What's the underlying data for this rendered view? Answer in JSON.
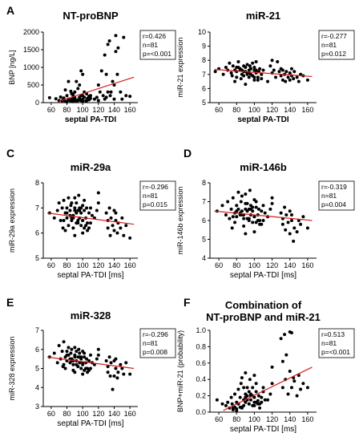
{
  "chart_data": [
    {
      "type": "scatter",
      "panel_letter": "A",
      "title_lines": [
        "NT-proBNP"
      ],
      "xlabel": "septal PA-TDI",
      "ylabel": "BNP [ng/L]",
      "xlim": [
        50,
        170
      ],
      "ylim": [
        0,
        2000
      ],
      "xticks": [
        60,
        80,
        100,
        120,
        140,
        160
      ],
      "yticks": [
        0,
        500,
        1000,
        1500,
        2000
      ],
      "grid": false,
      "stats": [
        "r=0.426",
        "n=81",
        "p=<0.001"
      ],
      "trendline": [
        [
          70,
          40
        ],
        [
          165,
          720
        ]
      ],
      "x": [
        58,
        66,
        70,
        72,
        74,
        75,
        76,
        78,
        78,
        80,
        80,
        82,
        82,
        84,
        85,
        86,
        86,
        88,
        88,
        88,
        90,
        90,
        90,
        92,
        92,
        94,
        94,
        95,
        96,
        96,
        98,
        98,
        100,
        100,
        100,
        102,
        102,
        104,
        105,
        106,
        108,
        108,
        110,
        115,
        118,
        120,
        120,
        122,
        124,
        126,
        128,
        128,
        130,
        130,
        132,
        132,
        134,
        135,
        136,
        138,
        140,
        140,
        142,
        142,
        144,
        145,
        148,
        150,
        152,
        155,
        160,
        98,
        105,
        88,
        80,
        92,
        110,
        86,
        94,
        100,
        96
      ],
      "y": [
        140,
        110,
        60,
        160,
        50,
        80,
        130,
        40,
        360,
        30,
        200,
        100,
        600,
        60,
        320,
        50,
        250,
        100,
        180,
        250,
        90,
        140,
        300,
        50,
        600,
        80,
        400,
        70,
        100,
        150,
        200,
        900,
        100,
        200,
        800,
        150,
        300,
        50,
        250,
        120,
        80,
        180,
        200,
        100,
        150,
        60,
        500,
        300,
        900,
        200,
        100,
        1350,
        150,
        800,
        300,
        1650,
        1750,
        200,
        300,
        600,
        100,
        500,
        1450,
        1900,
        800,
        1550,
        300,
        100,
        1850,
        200,
        180,
        60,
        50,
        30,
        20,
        40,
        120,
        90,
        60,
        30,
        500
      ]
    },
    {
      "type": "scatter",
      "panel_letter": "",
      "title_lines": [
        "miR-21"
      ],
      "xlabel": "septal PA-TDI",
      "ylabel": "miR-21 expression",
      "xlim": [
        50,
        170
      ],
      "ylim": [
        5,
        10
      ],
      "xticks": [
        60,
        80,
        100,
        120,
        140,
        160
      ],
      "yticks": [
        5,
        6,
        7,
        8,
        9,
        10
      ],
      "grid": false,
      "stats": [
        "r=-0.277",
        "n=81",
        "p=0.012"
      ],
      "trendline": [
        [
          55,
          7.35
        ],
        [
          165,
          6.85
        ]
      ],
      "x": [
        56,
        60,
        65,
        68,
        70,
        72,
        74,
        75,
        76,
        78,
        78,
        80,
        80,
        82,
        82,
        84,
        85,
        86,
        86,
        88,
        88,
        90,
        90,
        90,
        92,
        92,
        94,
        94,
        95,
        96,
        96,
        98,
        98,
        100,
        100,
        100,
        102,
        102,
        104,
        105,
        106,
        108,
        108,
        110,
        115,
        118,
        120,
        120,
        122,
        124,
        126,
        128,
        130,
        130,
        132,
        132,
        134,
        135,
        136,
        138,
        140,
        140,
        142,
        142,
        144,
        145,
        148,
        150,
        152,
        155,
        160,
        84,
        92,
        96,
        100,
        88,
        104,
        80,
        94,
        98,
        102
      ],
      "y": [
        7.2,
        7.4,
        7.0,
        7.5,
        7.3,
        7.8,
        7.1,
        6.9,
        7.6,
        7.3,
        6.5,
        7.2,
        6.8,
        7.5,
        7.9,
        7.4,
        6.7,
        7.3,
        7.0,
        7.6,
        6.9,
        7.2,
        7.5,
        6.3,
        7.1,
        7.7,
        6.8,
        7.3,
        7.6,
        7.0,
        7.4,
        6.9,
        7.8,
        7.3,
        6.6,
        7.5,
        7.1,
        7.9,
        6.8,
        7.2,
        7.4,
        7.0,
        6.7,
        7.3,
        6.5,
        7.6,
        7.1,
        8.0,
        7.3,
        6.8,
        7.9,
        7.2,
        6.9,
        7.4,
        6.6,
        7.3,
        7.0,
        6.5,
        7.2,
        6.8,
        7.1,
        6.6,
        7.4,
        6.9,
        6.7,
        7.2,
        6.8,
        6.5,
        7.0,
        6.9,
        6.6,
        7.3,
        7.0,
        7.4,
        6.8,
        7.2,
        6.6,
        7.5,
        7.1,
        6.9,
        7.3
      ]
    },
    {
      "type": "scatter",
      "panel_letter": "C",
      "title_lines": [
        "miR-29a"
      ],
      "xlabel": "septal PA-TDI [ms]",
      "ylabel": "miR-29a expression",
      "xlim": [
        50,
        170
      ],
      "ylim": [
        5,
        8
      ],
      "xticks": [
        60,
        80,
        100,
        120,
        140,
        160
      ],
      "yticks": [
        5,
        6,
        7,
        8
      ],
      "grid": false,
      "stats": [
        "r=-0.296",
        "n=81",
        "p=0.015"
      ],
      "trendline": [
        [
          55,
          6.8
        ],
        [
          165,
          6.35
        ]
      ],
      "x": [
        58,
        64,
        68,
        70,
        72,
        74,
        75,
        76,
        78,
        78,
        80,
        80,
        82,
        82,
        84,
        85,
        86,
        86,
        88,
        88,
        90,
        90,
        90,
        92,
        92,
        94,
        94,
        95,
        96,
        96,
        98,
        98,
        100,
        100,
        100,
        102,
        102,
        104,
        105,
        106,
        108,
        108,
        110,
        115,
        118,
        120,
        120,
        130,
        132,
        132,
        134,
        135,
        136,
        138,
        140,
        140,
        142,
        142,
        144,
        145,
        148,
        150,
        152,
        155,
        160,
        84,
        92,
        96,
        100,
        88,
        104,
        80,
        94,
        98,
        102,
        86,
        90,
        110,
        112,
        106,
        76
      ],
      "y": [
        6.8,
        6.6,
        6.9,
        7.2,
        6.5,
        7.0,
        6.2,
        7.3,
        6.8,
        6.1,
        7.0,
        6.6,
        7.4,
        6.3,
        6.9,
        7.1,
        6.5,
        7.2,
        6.7,
        6.2,
        7.0,
        7.4,
        5.9,
        6.8,
        7.2,
        6.4,
        6.9,
        7.5,
        6.6,
        7.0,
        6.3,
        6.8,
        7.1,
        6.5,
        6.0,
        6.9,
        7.3,
        6.6,
        7.0,
        6.4,
        6.8,
        6.2,
        7.0,
        6.6,
        6.9,
        7.6,
        7.2,
        6.8,
        6.2,
        6.5,
        7.0,
        5.9,
        6.6,
        6.3,
        6.9,
        6.1,
        6.5,
        6.8,
        6.0,
        6.4,
        6.2,
        6.6,
        5.9,
        6.3,
        5.8,
        6.7,
        6.4,
        6.9,
        6.5,
        6.6,
        6.3,
        6.8,
        6.5,
        7.0,
        6.2,
        6.6,
        6.9,
        6.4,
        6.7,
        6.1,
        6.5
      ]
    },
    {
      "type": "scatter",
      "panel_letter": "D",
      "title_lines": [
        "miR-146b"
      ],
      "xlabel": "septal PA-TDI [ms]",
      "ylabel": "miR-146b expression",
      "xlim": [
        50,
        170
      ],
      "ylim": [
        4,
        8
      ],
      "xticks": [
        60,
        80,
        100,
        120,
        140,
        160
      ],
      "yticks": [
        4,
        5,
        6,
        7,
        8
      ],
      "grid": false,
      "stats": [
        "r=-0.319",
        "n=81",
        "p=0.004"
      ],
      "trendline": [
        [
          55,
          6.5
        ],
        [
          165,
          6.0
        ]
      ],
      "x": [
        58,
        64,
        68,
        70,
        72,
        74,
        75,
        76,
        78,
        78,
        80,
        80,
        82,
        82,
        84,
        85,
        86,
        86,
        88,
        88,
        90,
        90,
        90,
        92,
        92,
        94,
        94,
        95,
        96,
        96,
        98,
        98,
        100,
        100,
        100,
        102,
        102,
        104,
        105,
        106,
        108,
        108,
        110,
        115,
        118,
        120,
        120,
        130,
        132,
        132,
        134,
        135,
        136,
        138,
        140,
        140,
        142,
        142,
        144,
        145,
        148,
        150,
        152,
        155,
        160,
        84,
        92,
        96,
        100,
        88,
        104,
        80,
        94,
        98,
        102,
        86,
        90,
        110,
        112,
        106,
        76
      ],
      "y": [
        6.5,
        6.8,
        6.3,
        7.0,
        6.1,
        6.6,
        5.6,
        7.2,
        6.4,
        5.9,
        6.8,
        6.2,
        7.5,
        6.6,
        6.3,
        7.0,
        6.5,
        7.3,
        6.1,
        5.7,
        6.9,
        7.4,
        5.3,
        6.5,
        6.9,
        6.0,
        6.6,
        7.6,
        6.3,
        6.8,
        5.9,
        6.5,
        7.1,
        6.2,
        5.4,
        6.7,
        7.0,
        6.3,
        6.6,
        6.0,
        6.5,
        5.8,
        6.8,
        6.2,
        6.6,
        7.2,
        6.9,
        6.4,
        5.8,
        6.1,
        6.7,
        5.5,
        6.3,
        5.9,
        6.5,
        5.3,
        6.0,
        6.3,
        4.9,
        5.6,
        5.4,
        6.0,
        5.8,
        6.2,
        5.6,
        6.4,
        6.1,
        6.6,
        6.2,
        6.3,
        6.0,
        6.5,
        6.1,
        6.7,
        5.9,
        6.3,
        6.6,
        6.0,
        6.4,
        5.8,
        6.2
      ]
    },
    {
      "type": "scatter",
      "panel_letter": "E",
      "title_lines": [
        "miR-328"
      ],
      "xlabel": "septal PA-TDI [ms]",
      "ylabel": "miR-328 expression",
      "xlim": [
        50,
        170
      ],
      "ylim": [
        3,
        7
      ],
      "xticks": [
        60,
        80,
        100,
        120,
        140,
        160
      ],
      "yticks": [
        3,
        4,
        5,
        6,
        7
      ],
      "grid": false,
      "stats": [
        "r=-0.296",
        "n=81",
        "p=0.008"
      ],
      "trendline": [
        [
          55,
          5.6
        ],
        [
          165,
          5.0
        ]
      ],
      "x": [
        58,
        64,
        68,
        70,
        72,
        74,
        75,
        76,
        78,
        78,
        80,
        80,
        82,
        82,
        84,
        85,
        86,
        86,
        88,
        88,
        90,
        90,
        90,
        92,
        92,
        94,
        94,
        95,
        96,
        96,
        98,
        98,
        100,
        100,
        100,
        102,
        102,
        104,
        105,
        106,
        108,
        108,
        110,
        115,
        118,
        120,
        120,
        130,
        132,
        132,
        134,
        135,
        136,
        138,
        140,
        140,
        142,
        142,
        144,
        145,
        148,
        150,
        152,
        155,
        160,
        84,
        92,
        96,
        100,
        88,
        104,
        80,
        94,
        98,
        102,
        86,
        90,
        110,
        112,
        106,
        76
      ],
      "y": [
        5.6,
        5.8,
        5.3,
        6.2,
        5.5,
        5.9,
        5.1,
        6.4,
        5.6,
        5.0,
        5.9,
        5.4,
        6.1,
        5.7,
        5.3,
        5.8,
        5.5,
        6.0,
        5.2,
        4.9,
        5.7,
        6.1,
        4.8,
        5.4,
        5.9,
        5.1,
        5.6,
        6.0,
        5.3,
        5.8,
        5.0,
        5.5,
        5.9,
        5.2,
        4.7,
        5.6,
        5.8,
        5.3,
        5.5,
        5.0,
        5.4,
        4.9,
        5.7,
        5.2,
        5.5,
        6.0,
        5.7,
        5.4,
        4.8,
        5.1,
        5.6,
        4.6,
        5.3,
        3.9,
        5.4,
        4.6,
        5.0,
        5.5,
        4.5,
        4.8,
        5.2,
        5.0,
        4.7,
        5.3,
        4.7,
        5.5,
        5.2,
        5.6,
        5.3,
        5.4,
        5.0,
        5.7,
        5.1,
        5.6,
        4.9,
        5.4,
        5.6,
        5.0,
        5.3,
        4.8,
        5.2
      ]
    },
    {
      "type": "scatter",
      "panel_letter": "F",
      "title_lines": [
        "Combination of",
        "NT-proBNP and miR-21"
      ],
      "xlabel": "septal PA-TDI [ms]",
      "ylabel": "BNP+miR-21 (probability)",
      "xlim": [
        50,
        170
      ],
      "ylim": [
        0,
        1.0
      ],
      "xticks": [
        60,
        80,
        100,
        120,
        140,
        160
      ],
      "yticks": [
        0.0,
        0.2,
        0.4,
        0.6,
        0.8,
        1.0
      ],
      "grid": false,
      "stats": [
        "r=0.513",
        "n=81",
        "p=<0.001"
      ],
      "trendline": [
        [
          65,
          0.02
        ],
        [
          165,
          0.55
        ]
      ],
      "x": [
        58,
        64,
        68,
        70,
        72,
        74,
        75,
        76,
        78,
        78,
        80,
        80,
        82,
        82,
        84,
        85,
        86,
        86,
        88,
        88,
        90,
        90,
        90,
        92,
        92,
        94,
        94,
        95,
        96,
        96,
        98,
        98,
        100,
        100,
        100,
        102,
        102,
        104,
        105,
        106,
        108,
        108,
        110,
        115,
        118,
        120,
        120,
        130,
        132,
        132,
        134,
        135,
        136,
        138,
        140,
        140,
        142,
        142,
        144,
        145,
        148,
        150,
        152,
        155,
        160,
        84,
        92,
        96,
        100,
        88,
        104,
        80,
        94,
        98,
        102,
        86,
        90,
        110,
        112,
        106,
        76
      ],
      "y": [
        0.15,
        0.1,
        0.08,
        0.12,
        0.05,
        0.18,
        0.1,
        0.03,
        0.22,
        0.06,
        0.12,
        0.02,
        0.28,
        0.1,
        0.18,
        0.35,
        0.05,
        0.42,
        0.15,
        0.08,
        0.22,
        0.48,
        0.12,
        0.2,
        0.3,
        0.1,
        0.25,
        0.4,
        0.15,
        0.2,
        0.08,
        0.3,
        0.45,
        0.18,
        0.12,
        0.35,
        0.25,
        0.1,
        0.2,
        0.05,
        0.18,
        0.12,
        0.3,
        0.15,
        0.22,
        0.55,
        0.35,
        0.9,
        0.62,
        0.3,
        0.95,
        0.4,
        0.7,
        0.22,
        0.98,
        0.5,
        0.97,
        0.3,
        0.42,
        0.38,
        0.2,
        0.45,
        0.28,
        0.35,
        0.3,
        0.06,
        0.15,
        0.22,
        0.08,
        0.3,
        0.14,
        0.04,
        0.1,
        0.2,
        0.12,
        0.06,
        0.18,
        0.25,
        0.15,
        0.1,
        0.05
      ]
    }
  ]
}
